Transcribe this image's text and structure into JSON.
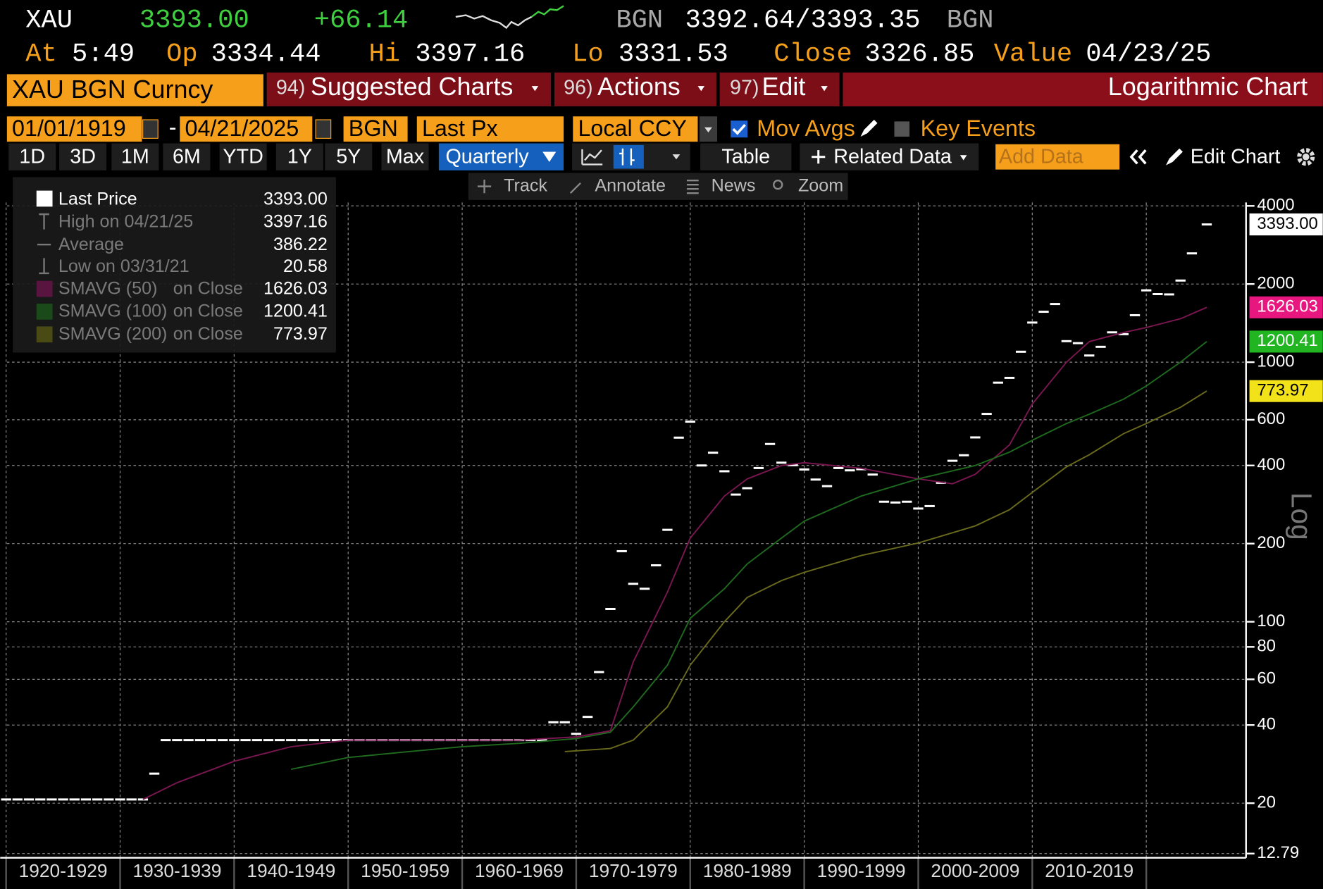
{
  "header": {
    "ticker": "XAU",
    "price": "3393.00",
    "change": "+66.14",
    "source": "BGN",
    "bid_ask": "3392.64/3393.35",
    "source_2": "BGN",
    "at_label": "At",
    "time": "5:49",
    "op_label": "Op",
    "open": "3334.44",
    "hi_label": "Hi",
    "high": "3397.16",
    "lo_label": "Lo",
    "low": "3331.53",
    "close_label": "Close",
    "close": "3326.85",
    "value_label": "Value",
    "value_date": "04/23/25"
  },
  "menu": {
    "security": "XAU BGN Curncy",
    "items": [
      {
        "code": "94)",
        "label": "Suggested Charts"
      },
      {
        "code": "96)",
        "label": "Actions"
      },
      {
        "code": "97)",
        "label": "Edit"
      }
    ],
    "chart_kind": "Logarithmic Chart"
  },
  "settings": {
    "start_date": "01/01/1919",
    "dash": "-",
    "end_date": "04/21/2025",
    "source": "BGN",
    "field": "Last Px",
    "currency": "Local CCY",
    "mov_avgs": "Mov Avgs",
    "key_events": "Key Events"
  },
  "periods": {
    "items": [
      "1D",
      "3D",
      "1M",
      "6M",
      "YTD",
      "1Y",
      "5Y",
      "Max"
    ],
    "frequency": "Quarterly",
    "table": "Table",
    "related": "Related Data",
    "add_data": "Add Data",
    "edit_chart": "Edit Chart"
  },
  "tools": [
    "Track",
    "Annotate",
    "News",
    "Zoom"
  ],
  "chart_data": {
    "type": "line",
    "log_scale": true,
    "grid": true,
    "scale_label": "Log",
    "xlim": [
      1920,
      2028.6
    ],
    "ylim": [
      12.79,
      5400
    ],
    "xticks": [
      {
        "value": 1920,
        "label": "1920-1929"
      },
      {
        "value": 1930,
        "label": "1930-1939"
      },
      {
        "value": 1940,
        "label": "1940-1949"
      },
      {
        "value": 1950,
        "label": "1950-1959"
      },
      {
        "value": 1960,
        "label": "1960-1969"
      },
      {
        "value": 1970,
        "label": "1970-1979"
      },
      {
        "value": 1980,
        "label": "1980-1989"
      },
      {
        "value": 1990,
        "label": "1990-1999"
      },
      {
        "value": 2000,
        "label": "2000-2009"
      },
      {
        "value": 2010,
        "label": "2010-2019"
      },
      {
        "value": 2020,
        "label": null
      }
    ],
    "yticks": [
      12.79,
      20,
      40,
      60,
      80,
      100,
      200,
      400,
      600,
      1000,
      2000,
      4000
    ],
    "stats": [
      {
        "label": "High on 04/21/25",
        "value": "3397.16"
      },
      {
        "label": "Average",
        "value": "386.22"
      },
      {
        "label": "Low on 03/31/21",
        "value": "20.58"
      }
    ],
    "series": [
      {
        "name": "Last Price",
        "style": "bars",
        "color": "#ffffff",
        "tag_color": "#ffffff",
        "tag_text": "#000000",
        "end_label": "3393.00",
        "x": [
          1920,
          1921,
          1922,
          1923,
          1924,
          1925,
          1926,
          1927,
          1928,
          1929,
          1930,
          1931,
          1932,
          1933,
          1934,
          1935,
          1936,
          1937,
          1938,
          1939,
          1940,
          1941,
          1942,
          1943,
          1944,
          1945,
          1946,
          1947,
          1948,
          1949,
          1950,
          1951,
          1952,
          1953,
          1954,
          1955,
          1956,
          1957,
          1958,
          1959,
          1960,
          1961,
          1962,
          1963,
          1964,
          1965,
          1966,
          1967,
          1968,
          1969,
          1970,
          1971,
          1972,
          1973,
          1974,
          1975,
          1976,
          1977,
          1978,
          1979,
          1980,
          1981,
          1982,
          1983,
          1984,
          1985,
          1986,
          1987,
          1988,
          1989,
          1990,
          1991,
          1992,
          1993,
          1994,
          1995,
          1996,
          1997,
          1998,
          1999,
          2000,
          2001,
          2002,
          2003,
          2004,
          2005,
          2006,
          2007,
          2008,
          2009,
          2010,
          2011,
          2012,
          2013,
          2014,
          2015,
          2016,
          2017,
          2018,
          2019,
          2020,
          2021,
          2022,
          2023,
          2024,
          2025.3
        ],
        "values": [
          20.67,
          20.67,
          20.67,
          20.67,
          20.67,
          20.67,
          20.67,
          20.67,
          20.67,
          20.67,
          20.67,
          20.67,
          20.67,
          26,
          35,
          35,
          35,
          35,
          35,
          35,
          35,
          35,
          35,
          35,
          35,
          35,
          35,
          35,
          35,
          35,
          35,
          35,
          35,
          35,
          35,
          35,
          35,
          35,
          35,
          35,
          35,
          35,
          35,
          35,
          35,
          35,
          35,
          35,
          41,
          41,
          37,
          43,
          64,
          112,
          187,
          140,
          134,
          165,
          226,
          512,
          590,
          400,
          448,
          380,
          309,
          327,
          391,
          484,
          410,
          401,
          386,
          353,
          333,
          391,
          383,
          387,
          369,
          290,
          288,
          290,
          273,
          279,
          343,
          417,
          438,
          513,
          632,
          834,
          870,
          1097,
          1421,
          1564,
          1675,
          1205,
          1184,
          1061,
          1146,
          1303,
          1282,
          1517,
          1891,
          1829,
          1824,
          2063,
          2625,
          3393
        ]
      },
      {
        "name": "SMAVG (50)",
        "basis": "on Close",
        "style": "line",
        "color": "#7a1650",
        "legend_color": "#5a1440",
        "tag_color": "#e8177f",
        "tag_text": "#ffffff",
        "end_label": "1626.03",
        "x": [
          1932,
          1935,
          1940,
          1945,
          1950,
          1955,
          1960,
          1965,
          1970,
          1973,
          1975,
          1978,
          1980,
          1983,
          1985,
          1988,
          1990,
          1995,
          2000,
          2003,
          2005,
          2008,
          2010,
          2013,
          2015,
          2018,
          2020,
          2023,
          2025.3
        ],
        "values": [
          20.67,
          24,
          29,
          33,
          35,
          35,
          35,
          35,
          36,
          38,
          70,
          130,
          210,
          305,
          355,
          400,
          410,
          390,
          355,
          340,
          370,
          480,
          690,
          1000,
          1200,
          1300,
          1360,
          1470,
          1626.03
        ]
      },
      {
        "name": "SMAVG (100)",
        "basis": "on Close",
        "style": "line",
        "color": "#1f6a1f",
        "legend_color": "#1a4a1a",
        "tag_color": "#22b522",
        "tag_text": "#ffffff",
        "end_label": "1200.41",
        "x": [
          1945,
          1950,
          1955,
          1960,
          1965,
          1970,
          1973,
          1975,
          1978,
          1980,
          1983,
          1985,
          1988,
          1990,
          1995,
          2000,
          2005,
          2008,
          2010,
          2013,
          2015,
          2018,
          2020,
          2023,
          2025.3
        ],
        "values": [
          27,
          30,
          31.5,
          33,
          34,
          35.5,
          37.5,
          47,
          68,
          103,
          134,
          167,
          210,
          244,
          305,
          355,
          400,
          450,
          500,
          580,
          630,
          720,
          810,
          1000,
          1200.41
        ]
      },
      {
        "name": "SMAVG (200)",
        "basis": "on Close",
        "style": "line",
        "color": "#6a6a1c",
        "legend_color": "#4a4a15",
        "tag_color": "#f2e21a",
        "tag_text": "#000000",
        "end_label": "773.97",
        "x": [
          1969,
          1973,
          1975,
          1978,
          1980,
          1983,
          1985,
          1988,
          1990,
          1995,
          2000,
          2005,
          2008,
          2010,
          2013,
          2015,
          2018,
          2020,
          2023,
          2025.3
        ],
        "values": [
          31.6,
          32.5,
          35,
          47,
          68,
          100,
          124,
          144,
          155,
          180,
          201,
          234,
          270,
          315,
          395,
          440,
          530,
          580,
          670,
          773.97
        ]
      }
    ]
  }
}
